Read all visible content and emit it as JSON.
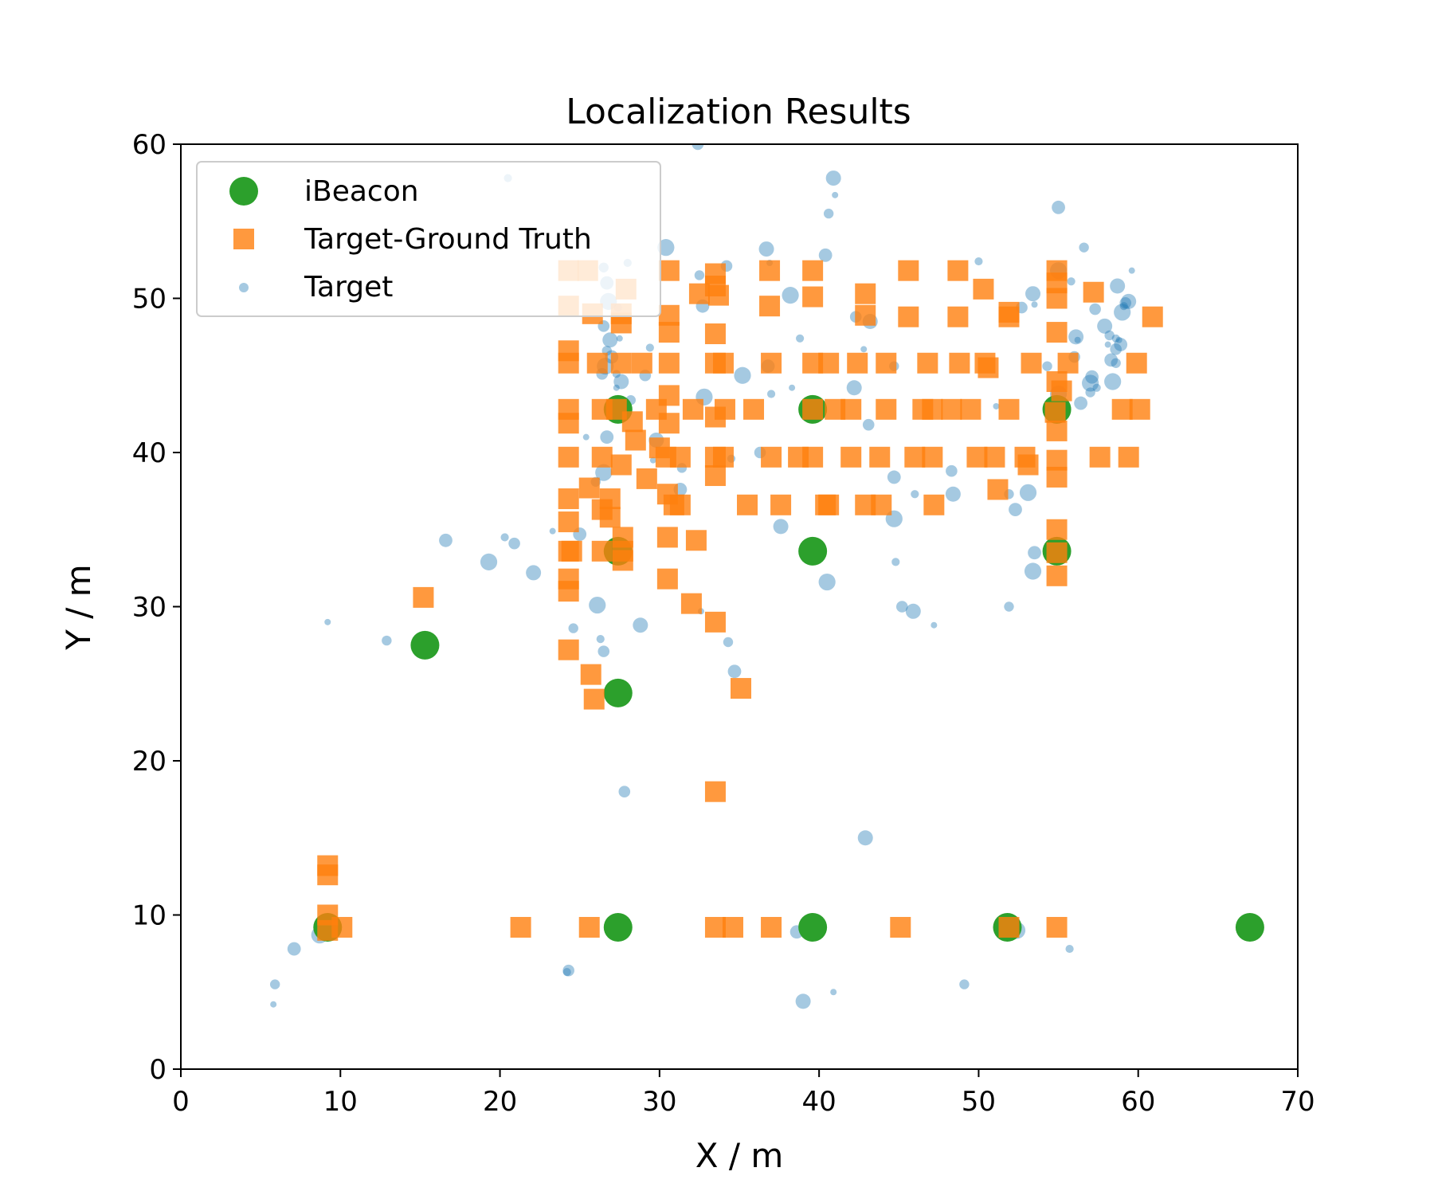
{
  "chart_data": {
    "type": "scatter",
    "title": "Localization Results",
    "xlabel": "X / m",
    "ylabel": "Y / m",
    "xlim": [
      0,
      70
    ],
    "ylim": [
      0,
      60
    ],
    "xticks": [
      0,
      10,
      20,
      30,
      40,
      50,
      60,
      70
    ],
    "yticks": [
      0,
      10,
      20,
      30,
      40,
      50,
      60
    ],
    "grid": false,
    "legend_position": "top-left",
    "series": [
      {
        "name": "iBeacon",
        "color": "#2ca02c",
        "marker": "circle",
        "points": [
          [
            9.2,
            9.2
          ],
          [
            27.4,
            9.2
          ],
          [
            39.6,
            9.2
          ],
          [
            51.8,
            9.2
          ],
          [
            67.0,
            9.2
          ],
          [
            15.3,
            27.5
          ],
          [
            27.4,
            24.4
          ],
          [
            27.4,
            33.6
          ],
          [
            39.6,
            33.6
          ],
          [
            54.9,
            33.6
          ],
          [
            27.4,
            42.8
          ],
          [
            39.6,
            42.8
          ],
          [
            54.9,
            42.8
          ]
        ]
      },
      {
        "name": "Target-Ground Truth",
        "color": "#ff7f0e",
        "marker": "square",
        "points": [
          [
            9.2,
            13.2
          ],
          [
            9.2,
            12.6
          ],
          [
            9.2,
            10.0
          ],
          [
            10.1,
            9.2
          ],
          [
            9.2,
            9.0
          ],
          [
            21.3,
            9.2
          ],
          [
            25.6,
            9.2
          ],
          [
            33.5,
            9.2
          ],
          [
            34.6,
            9.2
          ],
          [
            37.0,
            9.2
          ],
          [
            45.1,
            9.2
          ],
          [
            51.9,
            9.2
          ],
          [
            54.9,
            9.2
          ],
          [
            33.5,
            18.0
          ],
          [
            15.2,
            30.6
          ],
          [
            24.3,
            27.2
          ],
          [
            25.7,
            25.6
          ],
          [
            25.9,
            24.0
          ],
          [
            35.1,
            24.7
          ],
          [
            33.5,
            29.0
          ],
          [
            24.3,
            31.0
          ],
          [
            24.3,
            31.8
          ],
          [
            24.3,
            33.6
          ],
          [
            24.5,
            33.6
          ],
          [
            26.4,
            33.6
          ],
          [
            27.7,
            33.6
          ],
          [
            27.7,
            33.0
          ],
          [
            27.7,
            34.5
          ],
          [
            30.5,
            31.8
          ],
          [
            30.5,
            34.5
          ],
          [
            32.0,
            30.2
          ],
          [
            32.3,
            34.3
          ],
          [
            54.9,
            32.0
          ],
          [
            54.9,
            33.5
          ],
          [
            54.9,
            35.0
          ],
          [
            24.3,
            37.0
          ],
          [
            24.3,
            35.5
          ],
          [
            25.6,
            37.7
          ],
          [
            26.4,
            36.3
          ],
          [
            26.9,
            35.8
          ],
          [
            26.9,
            37.0
          ],
          [
            30.5,
            37.3
          ],
          [
            30.9,
            36.6
          ],
          [
            31.3,
            36.6
          ],
          [
            33.5,
            38.5
          ],
          [
            35.5,
            36.6
          ],
          [
            37.6,
            36.6
          ],
          [
            40.4,
            36.6
          ],
          [
            40.6,
            36.6
          ],
          [
            42.9,
            36.6
          ],
          [
            43.9,
            36.6
          ],
          [
            47.2,
            36.6
          ],
          [
            51.2,
            37.6
          ],
          [
            24.3,
            39.7
          ],
          [
            26.4,
            39.7
          ],
          [
            27.6,
            39.2
          ],
          [
            29.2,
            38.3
          ],
          [
            30.0,
            40.3
          ],
          [
            30.4,
            39.7
          ],
          [
            31.3,
            39.7
          ],
          [
            33.5,
            39.7
          ],
          [
            34.0,
            39.7
          ],
          [
            37.0,
            39.7
          ],
          [
            38.7,
            39.7
          ],
          [
            39.6,
            39.7
          ],
          [
            42.0,
            39.7
          ],
          [
            43.8,
            39.7
          ],
          [
            46.0,
            39.7
          ],
          [
            47.1,
            39.7
          ],
          [
            49.9,
            39.7
          ],
          [
            51.0,
            39.7
          ],
          [
            52.9,
            39.7
          ],
          [
            53.1,
            39.2
          ],
          [
            54.9,
            39.5
          ],
          [
            54.9,
            38.4
          ],
          [
            57.6,
            39.7
          ],
          [
            59.4,
            39.7
          ],
          [
            24.3,
            42.8
          ],
          [
            24.3,
            41.9
          ],
          [
            26.4,
            42.8
          ],
          [
            27.3,
            42.8
          ],
          [
            28.3,
            42.0
          ],
          [
            28.5,
            40.8
          ],
          [
            29.8,
            42.8
          ],
          [
            30.6,
            41.9
          ],
          [
            30.6,
            43.7
          ],
          [
            32.1,
            42.8
          ],
          [
            33.5,
            42.3
          ],
          [
            34.1,
            42.8
          ],
          [
            35.9,
            42.8
          ],
          [
            39.6,
            42.8
          ],
          [
            41.0,
            42.8
          ],
          [
            42.0,
            42.8
          ],
          [
            44.2,
            42.8
          ],
          [
            46.5,
            42.8
          ],
          [
            47.1,
            42.8
          ],
          [
            48.3,
            42.8
          ],
          [
            49.5,
            42.8
          ],
          [
            51.9,
            42.8
          ],
          [
            54.8,
            42.6
          ],
          [
            54.9,
            41.4
          ],
          [
            59.0,
            42.8
          ],
          [
            60.1,
            42.8
          ],
          [
            24.3,
            45.8
          ],
          [
            24.3,
            46.6
          ],
          [
            26.1,
            45.8
          ],
          [
            27.6,
            45.8
          ],
          [
            28.9,
            45.8
          ],
          [
            30.6,
            45.8
          ],
          [
            33.5,
            45.8
          ],
          [
            34.0,
            45.8
          ],
          [
            37.0,
            45.8
          ],
          [
            39.6,
            45.8
          ],
          [
            40.6,
            45.8
          ],
          [
            42.4,
            45.8
          ],
          [
            44.2,
            45.8
          ],
          [
            46.8,
            45.8
          ],
          [
            48.8,
            45.8
          ],
          [
            50.4,
            45.8
          ],
          [
            50.6,
            45.5
          ],
          [
            53.3,
            45.8
          ],
          [
            54.9,
            44.6
          ],
          [
            55.2,
            44.0
          ],
          [
            55.6,
            45.8
          ],
          [
            59.9,
            45.8
          ],
          [
            24.3,
            49.5
          ],
          [
            24.3,
            51.8
          ],
          [
            25.5,
            51.8
          ],
          [
            25.8,
            49.0
          ],
          [
            27.6,
            49.0
          ],
          [
            27.6,
            48.4
          ],
          [
            27.9,
            50.6
          ],
          [
            30.6,
            51.8
          ],
          [
            30.6,
            48.9
          ],
          [
            30.6,
            47.8
          ],
          [
            32.5,
            50.3
          ],
          [
            33.5,
            50.8
          ],
          [
            33.5,
            51.6
          ],
          [
            33.7,
            50.2
          ],
          [
            33.5,
            47.7
          ],
          [
            36.9,
            51.8
          ],
          [
            36.9,
            49.5
          ],
          [
            39.6,
            51.8
          ],
          [
            39.6,
            50.1
          ],
          [
            42.9,
            50.3
          ],
          [
            42.9,
            48.9
          ],
          [
            45.6,
            51.8
          ],
          [
            45.6,
            48.8
          ],
          [
            48.7,
            51.8
          ],
          [
            48.7,
            48.8
          ],
          [
            50.3,
            50.6
          ],
          [
            51.9,
            48.8
          ],
          [
            51.9,
            49.1
          ],
          [
            54.9,
            51.8
          ],
          [
            54.9,
            51.0
          ],
          [
            54.9,
            50.0
          ],
          [
            54.9,
            47.8
          ],
          [
            57.2,
            50.4
          ],
          [
            60.9,
            48.8
          ]
        ]
      },
      {
        "name": "Target",
        "color": "#1f77b4",
        "marker": "circle",
        "points": [
          [
            5.8,
            4.2
          ],
          [
            5.9,
            5.5
          ],
          [
            7.1,
            7.8
          ],
          [
            8.7,
            8.7
          ],
          [
            24.2,
            6.3
          ],
          [
            24.3,
            6.4
          ],
          [
            39.0,
            4.4
          ],
          [
            40.9,
            5.0
          ],
          [
            49.1,
            5.5
          ],
          [
            38.6,
            8.9
          ],
          [
            52.4,
            9.0
          ],
          [
            55.7,
            7.8
          ],
          [
            27.8,
            18.0
          ],
          [
            42.9,
            15.0
          ],
          [
            9.2,
            29.0
          ],
          [
            12.9,
            27.8
          ],
          [
            16.6,
            34.3
          ],
          [
            19.3,
            32.9
          ],
          [
            20.3,
            34.5
          ],
          [
            20.9,
            34.1
          ],
          [
            22.1,
            32.2
          ],
          [
            23.3,
            34.9
          ],
          [
            24.6,
            28.6
          ],
          [
            25.0,
            34.7
          ],
          [
            26.1,
            30.1
          ],
          [
            26.3,
            27.9
          ],
          [
            26.5,
            27.1
          ],
          [
            28.8,
            28.8
          ],
          [
            32.6,
            29.7
          ],
          [
            34.3,
            27.7
          ],
          [
            34.7,
            25.8
          ],
          [
            40.5,
            31.6
          ],
          [
            44.8,
            32.9
          ],
          [
            45.2,
            30.0
          ],
          [
            45.9,
            29.7
          ],
          [
            47.2,
            28.8
          ],
          [
            51.9,
            30.0
          ],
          [
            53.5,
            33.5
          ],
          [
            53.4,
            32.3
          ],
          [
            20.5,
            57.8
          ],
          [
            32.4,
            60.0
          ],
          [
            40.9,
            57.8
          ],
          [
            41.0,
            56.7
          ],
          [
            40.6,
            55.5
          ],
          [
            40.4,
            52.8
          ],
          [
            30.4,
            53.3
          ],
          [
            28.0,
            52.3
          ],
          [
            34.2,
            52.1
          ],
          [
            36.7,
            53.2
          ],
          [
            36.9,
            52.3
          ],
          [
            32.5,
            51.5
          ],
          [
            32.7,
            49.5
          ],
          [
            38.2,
            50.2
          ],
          [
            38.8,
            47.4
          ],
          [
            42.3,
            48.8
          ],
          [
            43.2,
            48.5
          ],
          [
            42.8,
            46.7
          ],
          [
            44.7,
            45.6
          ],
          [
            36.8,
            45.6
          ],
          [
            35.2,
            45.0
          ],
          [
            37.0,
            43.8
          ],
          [
            43.1,
            41.8
          ],
          [
            42.2,
            44.2
          ],
          [
            38.3,
            44.2
          ],
          [
            26.5,
            52.0
          ],
          [
            26.7,
            51.0
          ],
          [
            26.8,
            49.8
          ],
          [
            27.4,
            49.4
          ],
          [
            26.5,
            48.2
          ],
          [
            26.9,
            47.3
          ],
          [
            27.5,
            47.4
          ],
          [
            26.7,
            46.6
          ],
          [
            27.0,
            46.2
          ],
          [
            26.6,
            45.6
          ],
          [
            27.3,
            45.1
          ],
          [
            26.4,
            45.1
          ],
          [
            27.6,
            44.6
          ],
          [
            27.3,
            44.2
          ],
          [
            28.2,
            43.4
          ],
          [
            26.7,
            41.0
          ],
          [
            26.5,
            38.7
          ],
          [
            29.4,
            46.8
          ],
          [
            29.1,
            45.0
          ],
          [
            29.8,
            40.8
          ],
          [
            29.6,
            39.5
          ],
          [
            31.4,
            39.0
          ],
          [
            31.3,
            37.6
          ],
          [
            32.8,
            43.6
          ],
          [
            34.5,
            39.6
          ],
          [
            36.3,
            40.0
          ],
          [
            37.6,
            35.2
          ],
          [
            25.4,
            41.0
          ],
          [
            26.0,
            38.1
          ],
          [
            44.7,
            38.4
          ],
          [
            44.7,
            35.7
          ],
          [
            46.0,
            37.3
          ],
          [
            48.3,
            38.8
          ],
          [
            48.4,
            37.3
          ],
          [
            51.1,
            43.0
          ],
          [
            51.9,
            37.3
          ],
          [
            52.3,
            36.3
          ],
          [
            53.1,
            37.4
          ],
          [
            50.0,
            52.4
          ],
          [
            52.7,
            49.4
          ],
          [
            53.4,
            50.3
          ],
          [
            53.5,
            49.6
          ],
          [
            54.3,
            45.6
          ],
          [
            55.0,
            55.9
          ],
          [
            55.0,
            51.8
          ],
          [
            55.8,
            51.1
          ],
          [
            56.0,
            46.2
          ],
          [
            56.1,
            47.5
          ],
          [
            56.2,
            47.3
          ],
          [
            56.6,
            53.3
          ],
          [
            57.1,
            44.9
          ],
          [
            57.0,
            44.5
          ],
          [
            57.4,
            44.2
          ],
          [
            57.3,
            49.3
          ],
          [
            57.9,
            48.2
          ],
          [
            58.1,
            47.0
          ],
          [
            58.2,
            47.6
          ],
          [
            58.3,
            46.0
          ],
          [
            58.4,
            44.6
          ],
          [
            58.6,
            47.4
          ],
          [
            58.6,
            46.7
          ],
          [
            58.7,
            50.8
          ],
          [
            58.8,
            47.3
          ],
          [
            58.6,
            45.8
          ],
          [
            58.9,
            47.0
          ],
          [
            59.0,
            49.1
          ],
          [
            59.1,
            49.5
          ],
          [
            59.2,
            49.7
          ],
          [
            59.4,
            49.8
          ],
          [
            59.6,
            51.8
          ],
          [
            57.0,
            43.9
          ],
          [
            56.4,
            43.2
          ],
          [
            55.0,
            43.8
          ]
        ]
      }
    ]
  }
}
